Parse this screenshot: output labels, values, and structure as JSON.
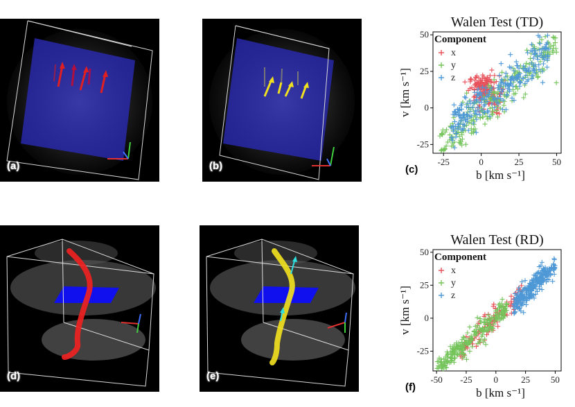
{
  "panels": {
    "a": {
      "label": "(a)"
    },
    "b": {
      "label": "(b)"
    },
    "c": {
      "label": "(c)"
    },
    "d": {
      "label": "(d)"
    },
    "e": {
      "label": "(e)"
    },
    "f": {
      "label": "(f)"
    }
  },
  "colors": {
    "x": "#e8505a",
    "y": "#74c45b",
    "z": "#4e98d6",
    "background": "#000000"
  },
  "chart_data": [
    {
      "type": "scatter",
      "title": "Walen Test (TD)",
      "xlabel": "b [km s⁻¹]",
      "ylabel": "v [km s⁻¹]",
      "xlim": [
        -32,
        53
      ],
      "ylim": [
        -31,
        52
      ],
      "xticks": [
        -25,
        0,
        25,
        50
      ],
      "yticks": [
        -25,
        0,
        25,
        50
      ],
      "xtick_labels": [
        "-25",
        "0",
        "25",
        "50"
      ],
      "ytick_labels": [
        "-25",
        "0",
        "25",
        "50"
      ],
      "legend": {
        "title": "Component",
        "position": "top-left",
        "entries": [
          "x",
          "y",
          "z"
        ]
      },
      "series": [
        {
          "name": "x",
          "distribution": "cluster centered near (b, v) = (0, 15), b spread -8 to 15, v spread 0 to 22, plus scattered points down to (0, -5)"
        },
        {
          "name": "y",
          "distribution": "broad linear band from (-28, -28) to (50, 45), roughly v = 0.9 b"
        },
        {
          "name": "z",
          "distribution": "broad band from (-20, -5) to (45, 42), concentrated from b = 0 to 45"
        }
      ]
    },
    {
      "type": "scatter",
      "title": "Walen Test (RD)",
      "xlabel": "b [km s⁻¹]",
      "ylabel": "v [km s⁻¹]",
      "xlim": [
        -53,
        55
      ],
      "ylim": [
        -40,
        52
      ],
      "xticks": [
        -50,
        -25,
        0,
        25,
        50
      ],
      "yticks": [
        -25,
        0,
        25,
        50
      ],
      "xtick_labels": [
        "-50",
        "-25",
        "0",
        "25",
        "50"
      ],
      "ytick_labels": [
        "-25",
        "0",
        "25",
        "50"
      ],
      "legend": {
        "title": "Component",
        "position": "top-left",
        "entries": [
          "x",
          "y",
          "z"
        ]
      },
      "series": [
        {
          "name": "x",
          "distribution": "linear band from (-30, -25) to (22, 20)"
        },
        {
          "name": "y",
          "distribution": "tight linear band from (-50, -37) to (10, 5), v approximately 0.78 b"
        },
        {
          "name": "z",
          "distribution": "dense cluster from (15, 10) to (50, 40) along v = 0.85 b"
        }
      ]
    }
  ]
}
